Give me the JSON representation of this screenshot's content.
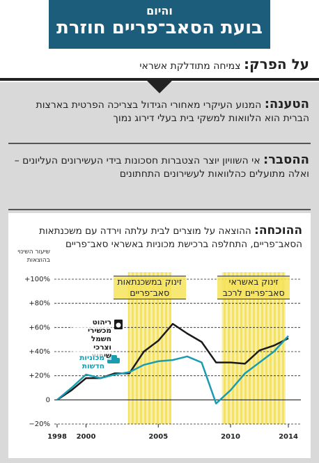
{
  "header": {
    "kicker": "והיום",
    "title": "בועת הסאב־פריים חוזרת"
  },
  "topic": {
    "label": "על הפרק:",
    "text": "צמיחה מתודלקת אשראי"
  },
  "claim": {
    "label": "הטענה:",
    "text": "המנוע העיקרי מאחורי הגידול בצריכה הפרטית בארצות הברית הוא הלוואות למשקי בית בעלי דירוג נמוך"
  },
  "explanation": {
    "label": "ההסבר:",
    "text": "אי השוויון יוצר הצטברות חסכונות בידי העשירונים העליונים – ואלה מתועלים כהלוואות לעשירונים התחתונים"
  },
  "chart_data": {
    "type": "line",
    "title_label": "ההוכחה:",
    "title": "ההוצאה על מוצרים לבית עלתה וירדה עם משכנתאות הסאב־פריים, התחלפה ברכישת מכוניות באשראי סאב־פריים",
    "y_label": "שיעור השינוי בהוצאות",
    "x": [
      1998,
      1999,
      2000,
      2001,
      2002,
      2003,
      2004,
      2005,
      2006,
      2007,
      2008,
      2009,
      2010,
      2011,
      2012,
      2013,
      2014
    ],
    "series": [
      {
        "name": "ריהוט מכשירי חשמל וצרכי שיפוץ",
        "color": "#1a1a1a",
        "values": [
          0,
          8,
          18,
          18,
          22,
          22,
          40,
          49,
          63,
          55,
          48,
          31,
          31,
          30,
          41,
          45,
          51
        ]
      },
      {
        "name": "מכוניות חדשות",
        "color": "#1a9cb0",
        "values": [
          0,
          10,
          21,
          18,
          21,
          23,
          29,
          32,
          33,
          36,
          31,
          -3,
          8,
          22,
          31,
          40,
          53
        ]
      }
    ],
    "highlights": [
      {
        "from": 2002.9,
        "to": 2005.9,
        "label": [
          "זינוק במשכנתאות",
          "סאב־פריים"
        ]
      },
      {
        "from": 2009.4,
        "to": 2013.8,
        "label": [
          "זינוק באשראי",
          "סאב־פריים לרכב"
        ]
      }
    ],
    "xlim": [
      1998,
      2014
    ],
    "xticks": [
      1998,
      2000,
      2005,
      2010,
      2014
    ],
    "ylim": [
      -20,
      100
    ],
    "yticks": [
      {
        "value": -20,
        "label": "−20%"
      },
      0,
      {
        "value": 20,
        "label": "+20%"
      },
      {
        "value": 40,
        "label": "+40%"
      },
      {
        "value": 60,
        "label": "+60%"
      },
      {
        "value": 80,
        "label": "+80%"
      },
      {
        "value": 100,
        "label": "+100%"
      }
    ],
    "grid": true
  }
}
